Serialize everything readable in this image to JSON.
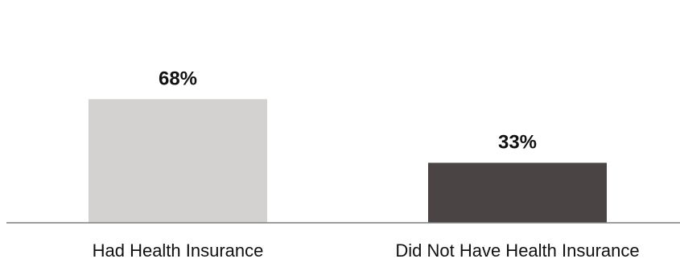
{
  "chart_data": {
    "type": "bar",
    "categories": [
      "Had Health Insurance",
      "Did Not Have Health Insurance"
    ],
    "values": [
      68,
      33
    ],
    "value_labels": [
      "68%",
      "33%"
    ],
    "colors": [
      "#d4d2d0",
      "#4a4544"
    ],
    "axis_color": "#7f7f7f",
    "ylim": [
      0,
      100
    ],
    "grid": false,
    "legend": "none",
    "title": "",
    "xlabel": "",
    "ylabel": ""
  }
}
